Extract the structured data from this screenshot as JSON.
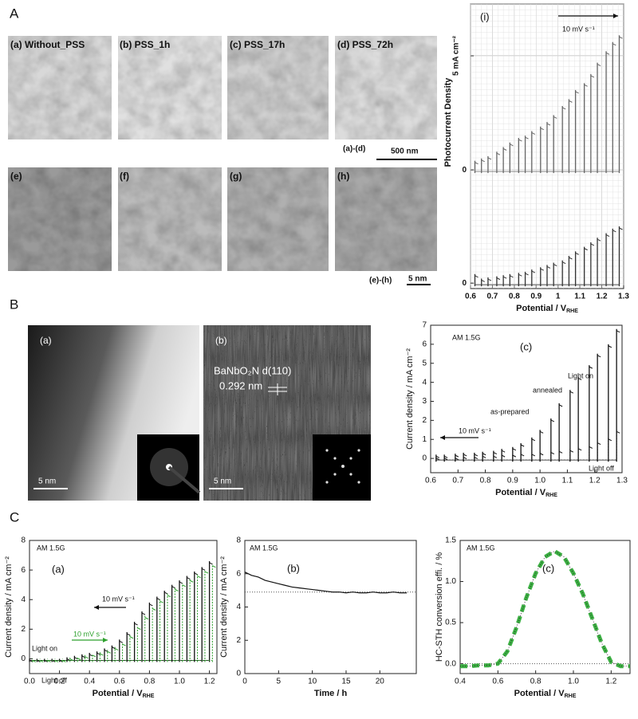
{
  "panels": {
    "section_labels": [
      "A",
      "B",
      "C"
    ],
    "A_top_labels": [
      "(a)  Without_PSS",
      "(b)  PSS_1h",
      "(c)  PSS_17h",
      "(d)  PSS_72h"
    ],
    "A_bottom_labels": [
      "(e)",
      "(f)",
      "(g)",
      "(h)"
    ],
    "A_scale_top": {
      "range": "(a)-(d)",
      "bar": "500 nm"
    },
    "A_scale_bottom": {
      "range": "(e)-(h)",
      "bar": "5 nm"
    },
    "B_images": [
      {
        "label": "(a)",
        "scale": "5 nm"
      },
      {
        "label": "(b)",
        "scale": "5 nm",
        "annotation": "BaNbO₂N d(110)",
        "spacing": "0.292 nm"
      }
    ]
  },
  "chart_data": [
    {
      "type": "chopped",
      "panel": "(i)",
      "xlabel": "Potential / V",
      "xlabel_sub": "RHE",
      "ylabel": "Photocurrent Density",
      "xlim": [
        0.6,
        1.3
      ],
      "xticks": [
        0.6,
        0.7,
        0.8,
        0.9,
        1,
        1.1,
        1.2,
        1.3
      ],
      "ylim": [
        -5.2,
        7.27
      ],
      "yticks": [
        0,
        {
          "value": 5,
          "label": "5 mA cm⁻²"
        }
      ],
      "grid": true,
      "annotations": [
        "10 mV s⁻¹"
      ],
      "series": [
        {
          "color": "#666666",
          "x": [
            0.62,
            0.65,
            0.68,
            0.72,
            0.75,
            0.78,
            0.82,
            0.85,
            0.88,
            0.92,
            0.95,
            0.98,
            1.02,
            1.05,
            1.08,
            1.12,
            1.15,
            1.18,
            1.22,
            1.25,
            1.28
          ],
          "values": [
            0.4,
            0.5,
            0.6,
            0.8,
            1.0,
            1.2,
            1.4,
            1.5,
            1.7,
            1.9,
            2.1,
            2.4,
            2.8,
            3.1,
            3.5,
            3.8,
            4.2,
            4.7,
            5.2,
            5.6,
            5.9
          ]
        }
      ]
    },
    {
      "type": "chopped",
      "xlim": [
        0.6,
        1.3
      ],
      "ylim": [
        -0.24,
        12.3
      ],
      "yticks": [
        0
      ],
      "series": [
        {
          "color": "#333333",
          "x": [
            0.62,
            0.65,
            0.68,
            0.72,
            0.75,
            0.78,
            0.82,
            0.85,
            0.88,
            0.92,
            0.95,
            0.98,
            1.02,
            1.05,
            1.08,
            1.12,
            1.15,
            1.18,
            1.22,
            1.25,
            1.28
          ],
          "values": [
            0.4,
            0.2,
            0.25,
            0.3,
            0.35,
            0.4,
            0.45,
            0.5,
            0.6,
            0.7,
            0.8,
            0.9,
            1.0,
            1.2,
            1.4,
            1.6,
            1.8,
            2.0,
            2.2,
            2.4,
            2.5
          ]
        }
      ]
    },
    {
      "type": "chopped",
      "xlabel": "Potential / V",
      "xlabel_sub": "RHE",
      "ylabel": "Current density / mA cm⁻²",
      "xlim": [
        0.6,
        1.3
      ],
      "xticks": [
        0.6,
        0.7,
        0.8,
        0.9,
        {
          "value": 1.0,
          "label": "1.0"
        },
        1.1,
        1.2,
        1.3
      ],
      "ylim": [
        -0.75,
        7
      ],
      "yticks": [
        0,
        1,
        2,
        3,
        4,
        5,
        6,
        7
      ],
      "annotations": [
        "AM 1.5G",
        "(c)",
        "Light on",
        "10 mV s⁻¹",
        "Light off"
      ],
      "series": [
        {
          "name": "annealed",
          "color": "#111111",
          "x": [
            0.62,
            0.65,
            0.69,
            0.72,
            0.76,
            0.79,
            0.83,
            0.86,
            0.9,
            0.93,
            0.97,
            1.0,
            1.04,
            1.07,
            1.11,
            1.14,
            1.18,
            1.21,
            1.25,
            1.28
          ],
          "values": [
            0.2,
            0.2,
            0.25,
            0.3,
            0.3,
            0.35,
            0.4,
            0.5,
            0.6,
            0.8,
            1.1,
            1.5,
            2.1,
            2.9,
            3.6,
            4.3,
            4.9,
            5.5,
            6.0,
            6.8
          ]
        },
        {
          "name": "as-prepared",
          "color": "#111111",
          "dash": true,
          "x": [
            0.62,
            0.65,
            0.69,
            0.72,
            0.76,
            0.79,
            0.83,
            0.86,
            0.9,
            0.93,
            0.97,
            1.0,
            1.04,
            1.07,
            1.11,
            1.14,
            1.18,
            1.21,
            1.25,
            1.28
          ],
          "values": [
            0.1,
            0.1,
            0.1,
            0.15,
            0.15,
            0.2,
            0.2,
            0.25,
            0.25,
            0.3,
            0.3,
            0.35,
            0.4,
            0.45,
            0.5,
            0.6,
            0.7,
            0.9,
            1.1,
            1.5
          ]
        }
      ]
    },
    {
      "type": "chopped",
      "xlabel": "Potential / V",
      "xlabel_sub": "RHE",
      "ylabel": "Current density / mA cm⁻²",
      "xlim": [
        0,
        1.25
      ],
      "xticks": [
        {
          "value": 0,
          "label": "0.0"
        },
        0.2,
        0.4,
        0.6,
        0.8,
        {
          "value": 1.0,
          "label": "1.0"
        },
        1.2
      ],
      "ylim": [
        -1,
        8
      ],
      "yticks": [
        0,
        2,
        4,
        6,
        8
      ],
      "annotations": [
        "AM 1.5G",
        "(a)",
        "10 mV s⁻¹",
        "10 mV s⁻¹",
        "Light on",
        "Light off"
      ],
      "series": [
        {
          "color": "#111111",
          "x": [
            0,
            0.05,
            0.1,
            0.15,
            0.2,
            0.25,
            0.3,
            0.35,
            0.4,
            0.45,
            0.5,
            0.55,
            0.6,
            0.65,
            0.7,
            0.75,
            0.8,
            0.85,
            0.9,
            0.95,
            1.0,
            1.05,
            1.1,
            1.15,
            1.2
          ],
          "values": [
            0,
            0,
            0,
            0,
            0,
            0.1,
            0.2,
            0.3,
            0.4,
            0.5,
            0.7,
            0.9,
            1.3,
            1.8,
            2.5,
            3.2,
            3.8,
            4.2,
            4.6,
            5.0,
            5.3,
            5.6,
            5.9,
            6.2,
            6.6
          ]
        },
        {
          "color": "#2ca02c",
          "dash": true,
          "x": [
            0.02,
            0.07,
            0.12,
            0.17,
            0.22,
            0.27,
            0.32,
            0.37,
            0.42,
            0.47,
            0.52,
            0.57,
            0.62,
            0.67,
            0.72,
            0.77,
            0.82,
            0.87,
            0.92,
            0.97,
            1.02,
            1.07,
            1.12,
            1.17,
            1.22
          ],
          "values": [
            0,
            0,
            0,
            0,
            0,
            0.1,
            0.15,
            0.25,
            0.35,
            0.45,
            0.6,
            0.8,
            1.1,
            1.6,
            2.2,
            2.9,
            3.5,
            4.0,
            4.4,
            4.8,
            5.1,
            5.4,
            5.7,
            6.0,
            6.4
          ]
        }
      ]
    },
    {
      "type": "line",
      "xlabel": "Time / h",
      "ylabel": "Current density / mA cm⁻²",
      "xlim": [
        0,
        25.4
      ],
      "xticks": [
        0,
        5,
        10,
        15,
        20
      ],
      "ylim": [
        0,
        8
      ],
      "yticks": [
        0,
        2,
        4,
        6,
        8
      ],
      "hline": 4.9,
      "annotations": [
        "AM 1.5G",
        "(b)"
      ],
      "series": [
        {
          "color": "#111111",
          "x": [
            0,
            1,
            2,
            3,
            4,
            5,
            6,
            7,
            8,
            9,
            10,
            11,
            12,
            13,
            14,
            15,
            16,
            17,
            18,
            19,
            20,
            21,
            22,
            23,
            24
          ],
          "values": [
            6.1,
            5.9,
            5.8,
            5.6,
            5.5,
            5.4,
            5.3,
            5.2,
            5.15,
            5.1,
            5.05,
            5.0,
            4.95,
            4.9,
            4.9,
            4.85,
            4.9,
            4.85,
            4.85,
            4.9,
            4.85,
            4.85,
            4.9,
            4.85,
            4.85
          ]
        }
      ]
    },
    {
      "type": "line",
      "xlabel": "Potential / V",
      "xlabel_sub": "RHE",
      "ylabel": "HC-STH conversion effi. / %",
      "xlim": [
        0.4,
        1.3
      ],
      "xticks": [
        0.4,
        0.6,
        0.8,
        {
          "value": 1.0,
          "label": "1.0"
        },
        1.2
      ],
      "ylim": [
        -0.12,
        1.5
      ],
      "yticks": [
        {
          "value": 0,
          "label": "0.0"
        },
        0.5,
        {
          "value": 1.0,
          "label": "1.0"
        },
        {
          "value": 1.5,
          "label": "1.5"
        }
      ],
      "hline": 0,
      "annotations": [
        "AM 1.5G",
        "(c)"
      ],
      "series": [
        {
          "color": "#3cb043",
          "dash": true,
          "x": [
            0.4,
            0.45,
            0.5,
            0.55,
            0.6,
            0.65,
            0.7,
            0.75,
            0.8,
            0.85,
            0.9,
            0.95,
            1.0,
            1.05,
            1.1,
            1.15,
            1.2,
            1.25,
            1.3
          ],
          "values": [
            -0.03,
            -0.03,
            -0.02,
            -0.02,
            0.0,
            0.15,
            0.45,
            0.8,
            1.1,
            1.3,
            1.37,
            1.3,
            1.1,
            0.85,
            0.55,
            0.25,
            0.02,
            -0.03,
            -0.03
          ]
        }
      ]
    }
  ]
}
